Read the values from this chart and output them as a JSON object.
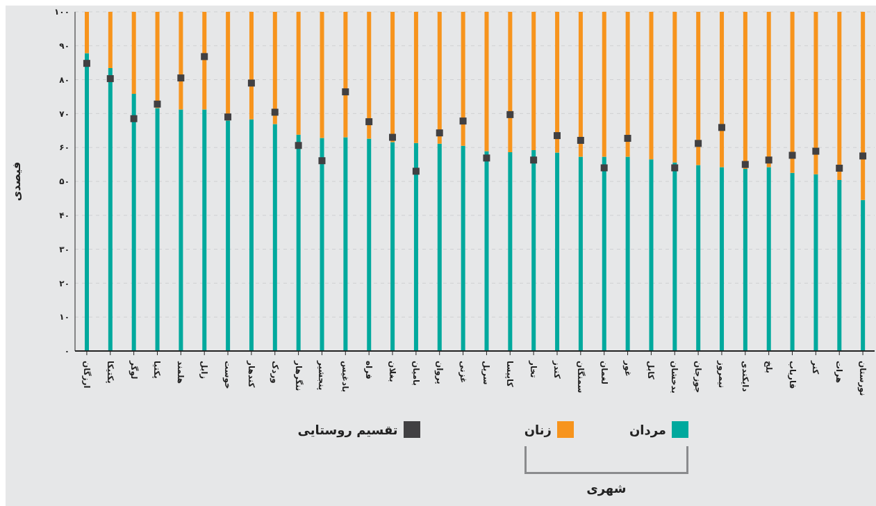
{
  "chart_data": {
    "type": "bar",
    "stacked": true,
    "ylabel": "فیصدی",
    "legend_title": "شهری",
    "categories": [
      "ارزگان",
      "پکتیکا",
      "لوگر",
      "پکتیا",
      "هلمند",
      "زابل",
      "خوست",
      "کندهار",
      "وردک",
      "ننگرهار",
      "پنجشیر",
      "بادغیس",
      "فراه",
      "بغلان",
      "بامیان",
      "پروان",
      "غزنی",
      "سرپل",
      "کاپیسا",
      "تخار",
      "کندز",
      "سمنگان",
      "لغمان",
      "غور",
      "کابل",
      "بدخشان",
      "جوزجان",
      "نیمروز",
      "دایکندی",
      "بلخ",
      "فاریاب",
      "کنر",
      "هرات",
      "نورستان"
    ],
    "series": [
      {
        "name": "مردان",
        "color": "#00a99d",
        "values": [
          87.8,
          83.4,
          75.8,
          71.6,
          71.2,
          71.2,
          68,
          68.3,
          66.9,
          63.8,
          62.8,
          63,
          62.6,
          61.6,
          61.3,
          61.1,
          60.5,
          58.9,
          58.6,
          59.2,
          58.5,
          57.3,
          57.3,
          57.3,
          56.5,
          55.6,
          54.8,
          54.2,
          53.7,
          54.2,
          52.5,
          52.1,
          50.4,
          44.5
        ]
      },
      {
        "name": "زنان",
        "color": "#f7941d",
        "values": [
          12.2,
          16.6,
          24.2,
          28.4,
          28.8,
          28.8,
          32,
          31.7,
          33.1,
          36.2,
          37.2,
          37,
          37.4,
          38.4,
          38.7,
          38.9,
          39.5,
          41.1,
          41.4,
          40.8,
          41.5,
          42.7,
          42.7,
          42.7,
          43.5,
          44.4,
          45.2,
          45.8,
          46.3,
          45.8,
          47.5,
          47.9,
          49.6,
          55.5
        ]
      },
      {
        "name": "تقسیم روستایی",
        "type": "scatter",
        "marker": "square",
        "color": "#414042",
        "values": [
          84.8,
          80.3,
          68.5,
          72.8,
          80.5,
          86.8,
          69,
          79,
          70.4,
          60.6,
          56.1,
          76.4,
          67.6,
          63,
          53,
          64.3,
          67.8,
          56.9,
          69.7,
          56.3,
          63.5,
          62.1,
          54,
          62.7,
          null,
          54,
          61.2,
          65.9,
          55,
          56.3,
          57.7,
          58.9,
          53.9,
          57.5
        ]
      }
    ],
    "ylim": [
      0,
      100
    ],
    "yticks": [
      {
        "value": 0,
        "label": "۰"
      },
      {
        "value": 10,
        "label": "۱۰"
      },
      {
        "value": 20,
        "label": "۲۰"
      },
      {
        "value": 30,
        "label": "۳۰"
      },
      {
        "value": 40,
        "label": "۴۰"
      },
      {
        "value": 50,
        "label": "۵۰"
      },
      {
        "value": 60,
        "label": "۶۰"
      },
      {
        "value": 70,
        "label": "۷۰"
      },
      {
        "value": 80,
        "label": "۸۰"
      },
      {
        "value": 90,
        "label": "۹۰"
      },
      {
        "value": 100,
        "label": "۱۰۰"
      }
    ],
    "grid": "y",
    "legend": "bottom"
  }
}
